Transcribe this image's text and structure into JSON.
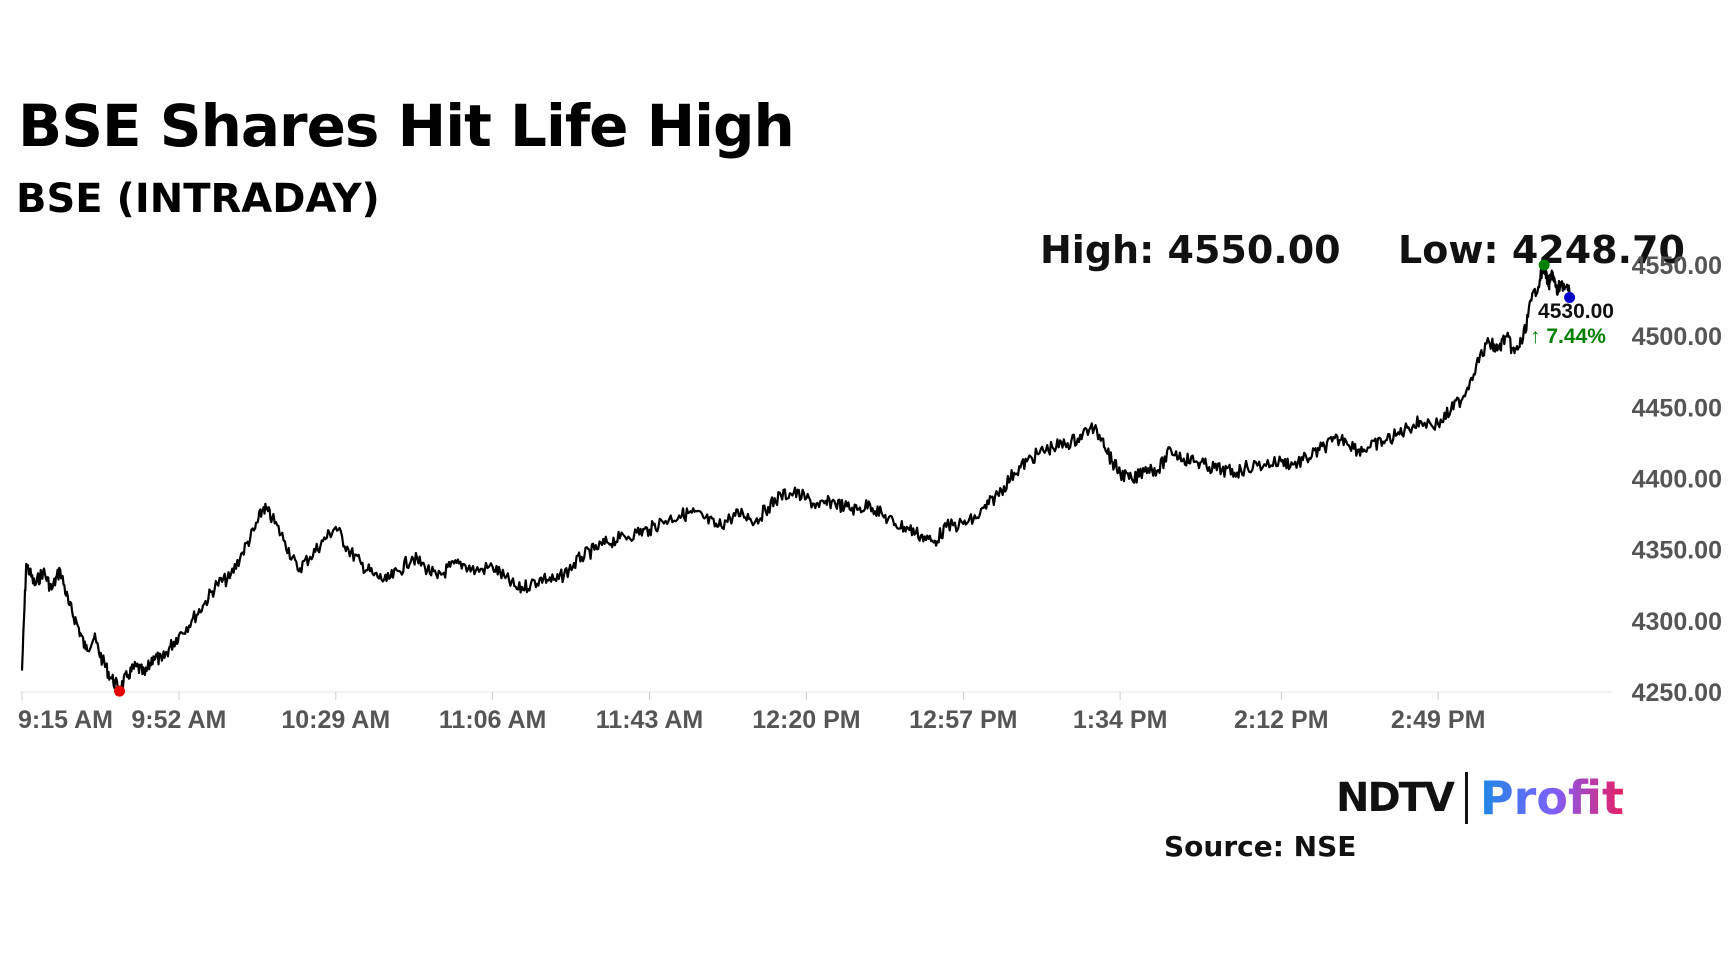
{
  "header": {
    "title": "BSE Shares Hit Life High",
    "subtitle": "BSE (INTRADAY)"
  },
  "stats": {
    "high_label": "High: 4550.00",
    "low_label": "Low: 4248.70"
  },
  "footer": {
    "source": "Source: NSE",
    "logo_ndtv": "NDTV",
    "logo_profit": "Profit"
  },
  "chart_data": {
    "type": "line",
    "xlabel": "",
    "ylabel": "",
    "x_ticks": [
      "9:15 AM",
      "9:52 AM",
      "10:29 AM",
      "11:06 AM",
      "11:43 AM",
      "12:20 PM",
      "12:57 PM",
      "1:34 PM",
      "2:12 PM",
      "2:49 PM"
    ],
    "y_ticks": [
      "4550.00",
      "4500.00",
      "4450.00",
      "4400.00",
      "4350.00",
      "4300.00",
      "4250.00"
    ],
    "ylim": [
      4250,
      4550
    ],
    "x_range": [
      "9:15 AM",
      "3:30 PM"
    ],
    "grid": false,
    "line_color": "#000000",
    "current_value": "4530.00",
    "change_label": "↑ 7.44%",
    "change_color": "#008000",
    "high_marker_color": "#008000",
    "low_marker_color": "#e60000",
    "last_marker_color": "#0000cc",
    "series": [
      {
        "points": [
          [
            "9:15 AM",
            4265
          ],
          [
            "9:16 AM",
            4340
          ],
          [
            "9:18 AM",
            4325
          ],
          [
            "9:20 AM",
            4335
          ],
          [
            "9:22 AM",
            4322
          ],
          [
            "9:24 AM",
            4336
          ],
          [
            "9:26 AM",
            4312
          ],
          [
            "9:28 AM",
            4298
          ],
          [
            "9:30 AM",
            4280
          ],
          [
            "9:32 AM",
            4288
          ],
          [
            "9:34 AM",
            4272
          ],
          [
            "9:36 AM",
            4260
          ],
          [
            "9:38 AM",
            4252
          ],
          [
            "9:40 AM",
            4262
          ],
          [
            "9:42 AM",
            4268
          ],
          [
            "9:44 AM",
            4262
          ],
          [
            "9:46 AM",
            4275
          ],
          [
            "9:48 AM",
            4272
          ],
          [
            "9:50 AM",
            4282
          ],
          [
            "9:52 AM",
            4290
          ],
          [
            "9:55 AM",
            4300
          ],
          [
            "9:58 AM",
            4312
          ],
          [
            "10:01 AM",
            4326
          ],
          [
            "10:04 AM",
            4330
          ],
          [
            "10:07 AM",
            4348
          ],
          [
            "10:10 AM",
            4365
          ],
          [
            "10:12 AM",
            4380
          ],
          [
            "10:14 AM",
            4372
          ],
          [
            "10:17 AM",
            4356
          ],
          [
            "10:20 AM",
            4336
          ],
          [
            "10:23 AM",
            4345
          ],
          [
            "10:26 AM",
            4356
          ],
          [
            "10:29 AM",
            4366
          ],
          [
            "10:32 AM",
            4350
          ],
          [
            "10:35 AM",
            4340
          ],
          [
            "10:38 AM",
            4332
          ],
          [
            "10:41 AM",
            4328
          ],
          [
            "10:44 AM",
            4335
          ],
          [
            "10:47 AM",
            4345
          ],
          [
            "10:50 AM",
            4338
          ],
          [
            "10:53 AM",
            4330
          ],
          [
            "10:56 AM",
            4338
          ],
          [
            "10:59 AM",
            4340
          ],
          [
            "11:02 AM",
            4335
          ],
          [
            "11:06 AM",
            4338
          ],
          [
            "11:09 AM",
            4330
          ],
          [
            "11:12 AM",
            4322
          ],
          [
            "11:15 AM",
            4326
          ],
          [
            "11:18 AM",
            4330
          ],
          [
            "11:21 AM",
            4328
          ],
          [
            "11:24 AM",
            4336
          ],
          [
            "11:27 AM",
            4345
          ],
          [
            "11:30 AM",
            4350
          ],
          [
            "11:33 AM",
            4355
          ],
          [
            "11:36 AM",
            4358
          ],
          [
            "11:40 AM",
            4362
          ],
          [
            "11:43 AM",
            4364
          ],
          [
            "11:46 AM",
            4370
          ],
          [
            "11:50 AM",
            4374
          ],
          [
            "11:53 AM",
            4376
          ],
          [
            "11:56 AM",
            4372
          ],
          [
            "11:59 AM",
            4366
          ],
          [
            "12:02 PM",
            4372
          ],
          [
            "12:05 PM",
            4376
          ],
          [
            "12:08 PM",
            4370
          ],
          [
            "12:11 PM",
            4380
          ],
          [
            "12:14 PM",
            4388
          ],
          [
            "12:17 PM",
            4390
          ],
          [
            "12:20 PM",
            4386
          ],
          [
            "12:23 PM",
            4380
          ],
          [
            "12:26 PM",
            4384
          ],
          [
            "12:29 PM",
            4380
          ],
          [
            "12:32 PM",
            4378
          ],
          [
            "12:35 PM",
            4382
          ],
          [
            "12:38 PM",
            4374
          ],
          [
            "12:41 PM",
            4368
          ],
          [
            "12:44 PM",
            4365
          ],
          [
            "12:47 PM",
            4360
          ],
          [
            "12:50 PM",
            4355
          ],
          [
            "12:53 PM",
            4366
          ],
          [
            "12:57 PM",
            4368
          ],
          [
            "1:00 PM",
            4372
          ],
          [
            "1:03 PM",
            4382
          ],
          [
            "1:06 PM",
            4392
          ],
          [
            "1:09 PM",
            4404
          ],
          [
            "1:12 PM",
            4412
          ],
          [
            "1:15 PM",
            4418
          ],
          [
            "1:18 PM",
            4422
          ],
          [
            "1:21 PM",
            4424
          ],
          [
            "1:24 PM",
            4428
          ],
          [
            "1:27 PM",
            4436
          ],
          [
            "1:30 PM",
            4428
          ],
          [
            "1:32 PM",
            4412
          ],
          [
            "1:34 PM",
            4404
          ],
          [
            "1:37 PM",
            4398
          ],
          [
            "1:40 PM",
            4408
          ],
          [
            "1:43 PM",
            4406
          ],
          [
            "1:46 PM",
            4420
          ],
          [
            "1:49 PM",
            4414
          ],
          [
            "1:52 PM",
            4412
          ],
          [
            "1:55 PM",
            4408
          ],
          [
            "1:58 PM",
            4406
          ],
          [
            "2:01 PM",
            4404
          ],
          [
            "2:04 PM",
            4408
          ],
          [
            "2:08 PM",
            4410
          ],
          [
            "2:12 PM",
            4412
          ],
          [
            "2:15 PM",
            4410
          ],
          [
            "2:18 PM",
            4414
          ],
          [
            "2:21 PM",
            4420
          ],
          [
            "2:24 PM",
            4426
          ],
          [
            "2:27 PM",
            4428
          ],
          [
            "2:30 PM",
            4420
          ],
          [
            "2:33 PM",
            4422
          ],
          [
            "2:36 PM",
            4426
          ],
          [
            "2:39 PM",
            4430
          ],
          [
            "2:42 PM",
            4436
          ],
          [
            "2:45 PM",
            4440
          ],
          [
            "2:49 PM",
            4438
          ],
          [
            "2:52 PM",
            4448
          ],
          [
            "2:55 PM",
            4458
          ],
          [
            "2:58 PM",
            4480
          ],
          [
            "3:01 PM",
            4496
          ],
          [
            "3:03 PM",
            4490
          ],
          [
            "3:05 PM",
            4500
          ],
          [
            "3:07 PM",
            4488
          ],
          [
            "3:09 PM",
            4498
          ],
          [
            "3:11 PM",
            4525
          ],
          [
            "3:13 PM",
            4540
          ],
          [
            "3:14 PM",
            4550
          ],
          [
            "3:15 PM",
            4535
          ],
          [
            "3:16 PM",
            4545
          ],
          [
            "3:17 PM",
            4530
          ],
          [
            "3:18 PM",
            4538
          ],
          [
            "3:20 PM",
            4530
          ]
        ]
      }
    ]
  }
}
